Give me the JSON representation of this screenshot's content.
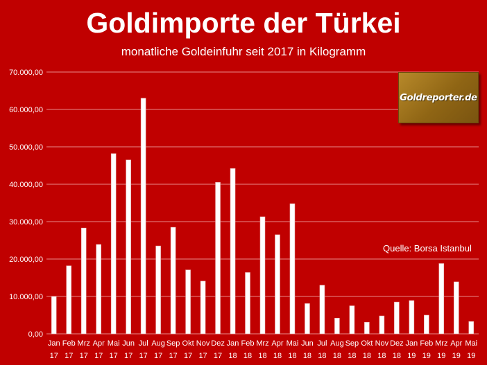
{
  "title": "Goldimporte der Türkei",
  "subtitle": "monatliche Goldeinfuhr seit 2017 in Kilogramm",
  "source": "Quelle: Borsa Istanbul",
  "logo_text": "Goldreporter.de",
  "colors": {
    "background": "#c00000",
    "bar": "#ffffff",
    "bar_outline": "#e6a9a9",
    "grid": "#e88a8a",
    "text": "#ffffff",
    "logo_bg": "#9b6d18"
  },
  "chart_data": {
    "type": "bar",
    "title": "Goldimporte der Türkei",
    "subtitle": "monatliche Goldeinfuhr seit 2017 in Kilogramm",
    "ylim": [
      0,
      70000
    ],
    "yticks": [
      "0,00",
      "10.000,00",
      "20.000,00",
      "30.000,00",
      "40.000,00",
      "50.000,00",
      "60.000,00",
      "70.000,00"
    ],
    "grid": true,
    "categories": [
      [
        "Jan",
        "17"
      ],
      [
        "Feb",
        "17"
      ],
      [
        "Mrz",
        "17"
      ],
      [
        "Apr",
        "17"
      ],
      [
        "Mai",
        "17"
      ],
      [
        "Jun",
        "17"
      ],
      [
        "Jul",
        "17"
      ],
      [
        "Aug",
        "17"
      ],
      [
        "Sep",
        "17"
      ],
      [
        "Okt",
        "17"
      ],
      [
        "Nov",
        "17"
      ],
      [
        "Dez",
        "17"
      ],
      [
        "Jan",
        "18"
      ],
      [
        "Feb",
        "18"
      ],
      [
        "Mrz",
        "18"
      ],
      [
        "Apr",
        "18"
      ],
      [
        "Mai",
        "18"
      ],
      [
        "Jun",
        "18"
      ],
      [
        "Jul",
        "18"
      ],
      [
        "Aug",
        "18"
      ],
      [
        "Sep",
        "18"
      ],
      [
        "Okt",
        "18"
      ],
      [
        "Nov",
        "18"
      ],
      [
        "Dez",
        "18"
      ],
      [
        "Jan",
        "19"
      ],
      [
        "Feb",
        "19"
      ],
      [
        "Mrz",
        "19"
      ],
      [
        "Apr",
        "19"
      ],
      [
        "Mai",
        "19"
      ]
    ],
    "values": [
      10000,
      18200,
      28300,
      23900,
      48200,
      46500,
      63000,
      23500,
      28500,
      17100,
      14100,
      40500,
      44200,
      16400,
      31300,
      26500,
      34800,
      8100,
      13000,
      4200,
      7500,
      3100,
      4800,
      8500,
      8900,
      5000,
      18800,
      13900,
      3300
    ]
  }
}
